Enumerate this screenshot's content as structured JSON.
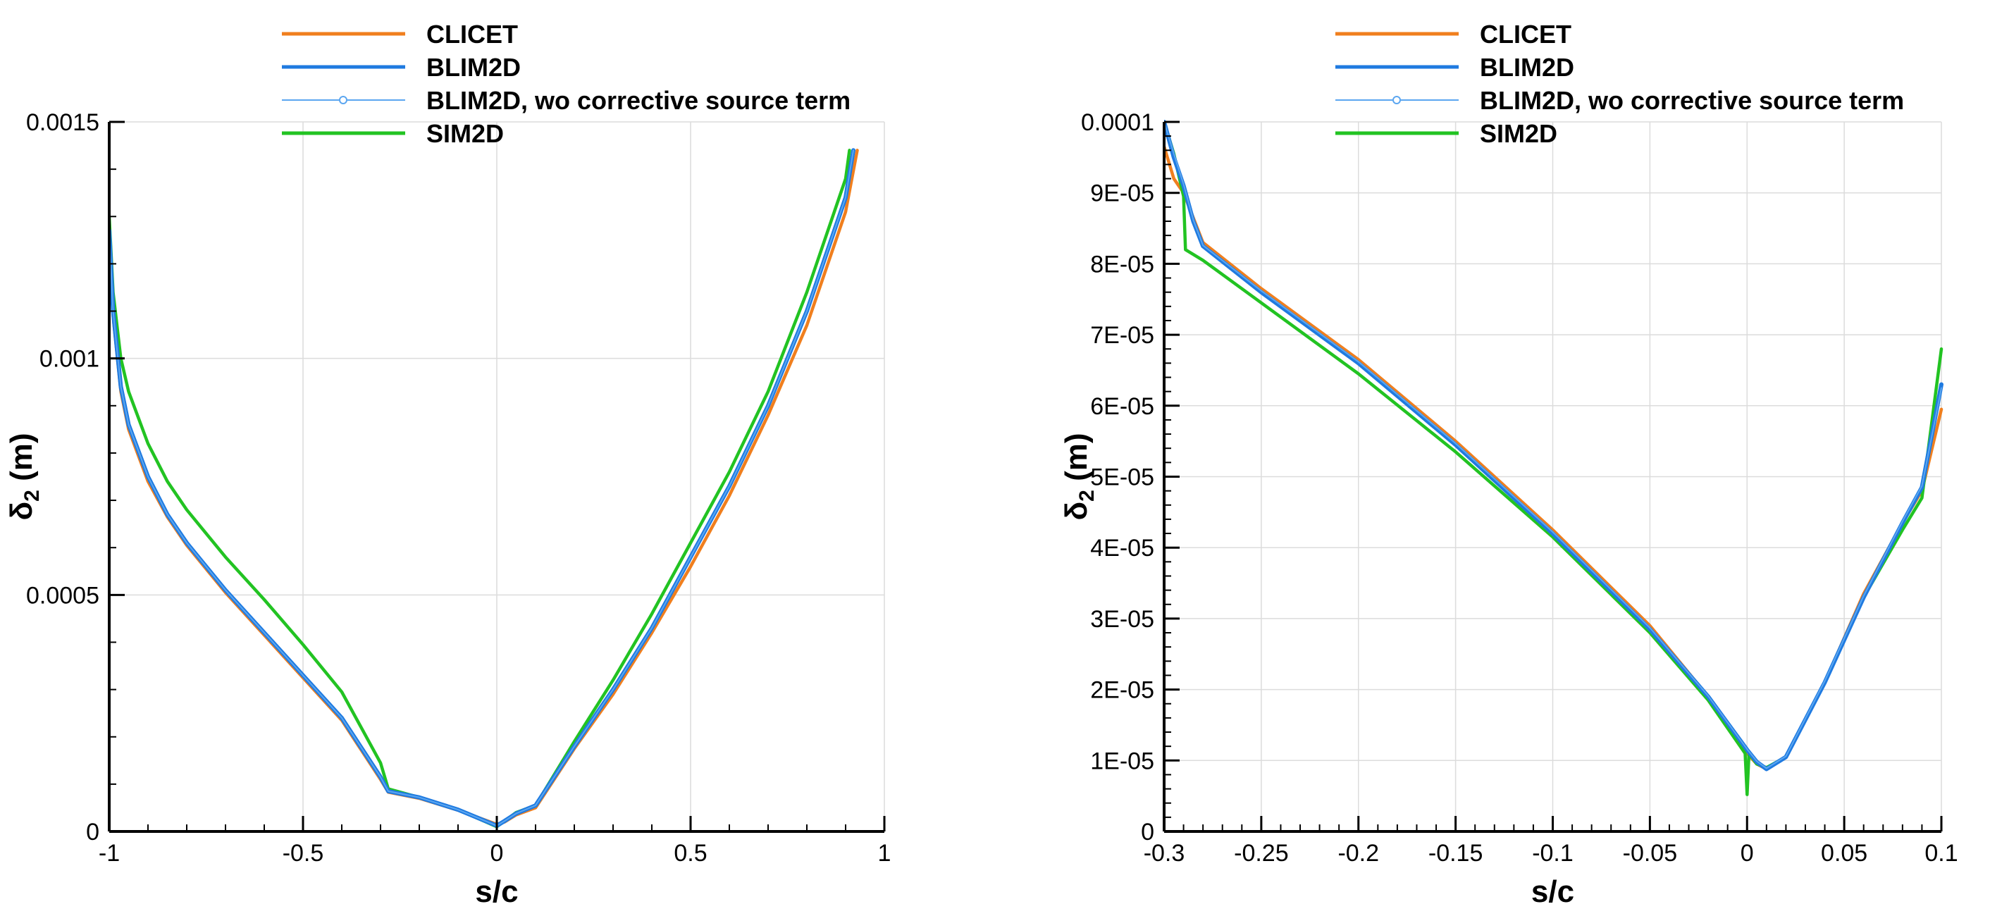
{
  "colors": {
    "CLICET": "#F07F1E",
    "BLIM2D": "#1F7AE0",
    "BLIM2D_wo": "#5BA6F0",
    "SIM2D": "#22C322"
  },
  "legend": [
    {
      "key": "CLICET",
      "label": "CLICET",
      "style": "thick"
    },
    {
      "key": "BLIM2D",
      "label": "BLIM2D",
      "style": "thick"
    },
    {
      "key": "BLIM2D_wo",
      "label": "BLIM2D, wo corrective source term",
      "style": "thin-marker"
    },
    {
      "key": "SIM2D",
      "label": "SIM2D",
      "style": "thick"
    }
  ],
  "chart_data": [
    {
      "type": "line",
      "xlabel": "s/c",
      "ylabel_main": "δ",
      "ylabel_sub": "2",
      "ylabel_unit": " (m)",
      "xlim": [
        -1,
        1
      ],
      "ylim": [
        0,
        0.0015
      ],
      "xticks": [
        -1,
        -0.5,
        0,
        0.5,
        1
      ],
      "xtick_labels": [
        "-1",
        "-0.5",
        "0",
        "0.5",
        "1"
      ],
      "yticks": [
        0,
        0.0005,
        0.001,
        0.0015
      ],
      "ytick_labels": [
        "0",
        "0.0005",
        "0.001",
        "0.0015"
      ],
      "xminor_step": 0.1,
      "yminor_step": 0.0001,
      "grid": true,
      "series": [
        {
          "name": "CLICET",
          "x": [
            -1,
            -0.99,
            -0.97,
            -0.95,
            -0.9,
            -0.85,
            -0.8,
            -0.7,
            -0.6,
            -0.5,
            -0.4,
            -0.3,
            -0.28,
            -0.2,
            -0.1,
            0,
            0.02,
            0.05,
            0.1,
            0.2,
            0.3,
            0.4,
            0.5,
            0.6,
            0.7,
            0.8,
            0.9,
            0.93
          ],
          "y": [
            0.00125,
            0.00109,
            0.00093,
            0.00085,
            0.00074,
            0.000665,
            0.000605,
            0.000505,
            0.000415,
            0.000325,
            0.000235,
            0.00011,
            8.3e-05,
            7e-05,
            4.5e-05,
            1.5e-05,
            2e-05,
            3.5e-05,
            5e-05,
            0.000175,
            0.00029,
            0.00042,
            0.00056,
            0.00071,
            0.00088,
            0.00107,
            0.00131,
            0.00144
          ]
        },
        {
          "name": "BLIM2D",
          "x": [
            -1,
            -0.99,
            -0.97,
            -0.95,
            -0.9,
            -0.85,
            -0.8,
            -0.7,
            -0.6,
            -0.5,
            -0.4,
            -0.3,
            -0.28,
            -0.2,
            -0.1,
            0,
            0.02,
            0.05,
            0.1,
            0.2,
            0.3,
            0.4,
            0.5,
            0.6,
            0.7,
            0.8,
            0.9,
            0.92
          ],
          "y": [
            0.00127,
            0.0011,
            0.00094,
            0.00086,
            0.00075,
            0.00067,
            0.00061,
            0.00051,
            0.00042,
            0.00033,
            0.00024,
            0.000115,
            8.5e-05,
            7.2e-05,
            4.6e-05,
            1.2e-05,
            2.2e-05,
            3.8e-05,
            5.5e-05,
            0.00018,
            0.0003,
            0.00043,
            0.00058,
            0.00073,
            0.0009,
            0.0011,
            0.00134,
            0.00144
          ]
        },
        {
          "name": "BLIM2D, wo corrective source term",
          "x": [
            -1,
            -0.99,
            -0.97,
            -0.95,
            -0.9,
            -0.85,
            -0.8,
            -0.7,
            -0.6,
            -0.5,
            -0.4,
            -0.3,
            -0.28,
            -0.2,
            -0.1,
            0,
            0.02,
            0.05,
            0.1,
            0.2,
            0.3,
            0.4,
            0.5,
            0.6,
            0.7,
            0.8,
            0.9,
            0.92
          ],
          "y": [
            0.00127,
            0.0011,
            0.00094,
            0.00086,
            0.00075,
            0.00067,
            0.00061,
            0.00051,
            0.00042,
            0.00033,
            0.00024,
            0.000115,
            8.5e-05,
            7.2e-05,
            4.6e-05,
            1.2e-05,
            2.2e-05,
            3.8e-05,
            5.5e-05,
            0.00018,
            0.0003,
            0.00043,
            0.00058,
            0.00073,
            0.0009,
            0.0011,
            0.00134,
            0.00144
          ]
        },
        {
          "name": "SIM2D",
          "x": [
            -1,
            -0.99,
            -0.97,
            -0.95,
            -0.9,
            -0.85,
            -0.8,
            -0.7,
            -0.6,
            -0.5,
            -0.4,
            -0.3,
            -0.28,
            -0.2,
            -0.1,
            0,
            0.02,
            0.05,
            0.1,
            0.2,
            0.3,
            0.4,
            0.5,
            0.6,
            0.7,
            0.8,
            0.9,
            0.91
          ],
          "y": [
            0.0013,
            0.00114,
            0.001,
            0.00093,
            0.00082,
            0.00074,
            0.00068,
            0.00058,
            0.00049,
            0.000395,
            0.000295,
            0.000145,
            9e-05,
            7.2e-05,
            4.6e-05,
            1e-05,
            2.2e-05,
            4e-05,
            5.5e-05,
            0.00019,
            0.00032,
            0.00046,
            0.00061,
            0.00076,
            0.00093,
            0.00114,
            0.00138,
            0.00144
          ]
        }
      ]
    },
    {
      "type": "line",
      "xlabel": "s/c",
      "ylabel_main": "δ",
      "ylabel_sub": "2",
      "ylabel_unit": " (m)",
      "xlim": [
        -0.3,
        0.1
      ],
      "ylim": [
        0,
        0.0001
      ],
      "xticks": [
        -0.3,
        -0.25,
        -0.2,
        -0.15,
        -0.1,
        -0.05,
        0,
        0.05,
        0.1
      ],
      "xtick_labels": [
        "-0.3",
        "-0.25",
        "-0.2",
        "-0.15",
        "-0.1",
        "-0.05",
        "0",
        "0.05",
        "0.1"
      ],
      "yticks": [
        0,
        1e-05,
        2e-05,
        3e-05,
        4e-05,
        5e-05,
        6e-05,
        7e-05,
        8e-05,
        9e-05,
        0.0001
      ],
      "ytick_labels": [
        "0",
        "1E-05",
        "2E-05",
        "3E-05",
        "4E-05",
        "5E-05",
        "6E-05",
        "7E-05",
        "8E-05",
        "9E-05",
        "0.0001"
      ],
      "xminor_step": 0.01,
      "yminor_step": 2e-06,
      "grid": true,
      "series": [
        {
          "name": "CLICET",
          "x": [
            -0.3,
            -0.295,
            -0.29,
            -0.28,
            -0.25,
            -0.2,
            -0.15,
            -0.1,
            -0.05,
            -0.02,
            0,
            0.005,
            0.01,
            0.02,
            0.04,
            0.06,
            0.08,
            0.09,
            0.1
          ],
          "y": [
            9.65e-05,
            9.2e-05,
            9e-05,
            8.3e-05,
            7.65e-05,
            6.65e-05,
            5.5e-05,
            4.25e-05,
            2.9e-05,
            1.9e-05,
            1.1e-05,
            9.5e-06,
            8.8e-06,
            1.05e-05,
            2.1e-05,
            3.35e-05,
            4.35e-05,
            4.8e-05,
            5.95e-05
          ]
        },
        {
          "name": "BLIM2D",
          "x": [
            -0.3,
            -0.295,
            -0.29,
            -0.285,
            -0.28,
            -0.25,
            -0.2,
            -0.15,
            -0.1,
            -0.05,
            -0.02,
            0,
            0.005,
            0.01,
            0.02,
            0.04,
            0.06,
            0.08,
            0.09,
            0.1
          ],
          "y": [
            0.0001,
            9.5e-05,
            9.1e-05,
            8.6e-05,
            8.25e-05,
            7.6e-05,
            6.6e-05,
            5.45e-05,
            4.2e-05,
            2.85e-05,
            1.9e-05,
            1.15e-05,
            9.8e-06,
            8.8e-06,
            1.05e-05,
            2.1e-05,
            3.3e-05,
            4.35e-05,
            4.85e-05,
            6.3e-05
          ]
        },
        {
          "name": "BLIM2D, wo corrective source term",
          "x": [
            -0.3,
            -0.295,
            -0.29,
            -0.285,
            -0.28,
            -0.25,
            -0.2,
            -0.15,
            -0.1,
            -0.05,
            -0.02,
            0,
            0.005,
            0.01,
            0.02,
            0.04,
            0.06,
            0.08,
            0.09,
            0.1
          ],
          "y": [
            0.0001,
            9.55e-05,
            9.12e-05,
            8.62e-05,
            8.26e-05,
            7.62e-05,
            6.62e-05,
            5.47e-05,
            4.22e-05,
            2.87e-05,
            1.91e-05,
            1.16e-05,
            9.9e-06,
            8.9e-06,
            1.06e-05,
            2.12e-05,
            3.32e-05,
            4.37e-05,
            4.87e-05,
            6.25e-05
          ]
        },
        {
          "name": "SIM2D",
          "x": [
            -0.3,
            -0.295,
            -0.29,
            -0.289,
            -0.28,
            -0.25,
            -0.2,
            -0.15,
            -0.1,
            -0.05,
            -0.02,
            -0.001,
            0,
            0.001,
            0.005,
            0.01,
            0.02,
            0.04,
            0.06,
            0.08,
            0.09,
            0.1
          ],
          "y": [
            0.0001,
            9.55e-05,
            8.95e-05,
            8.2e-05,
            8.05e-05,
            7.45e-05,
            6.45e-05,
            5.35e-05,
            4.15e-05,
            2.8e-05,
            1.85e-05,
            1.1e-05,
            5.2e-06,
            1.1e-05,
            9.5e-06,
            9e-06,
            1.05e-05,
            2.1e-05,
            3.3e-05,
            4.25e-05,
            4.7e-05,
            6.8e-05
          ]
        }
      ]
    }
  ]
}
